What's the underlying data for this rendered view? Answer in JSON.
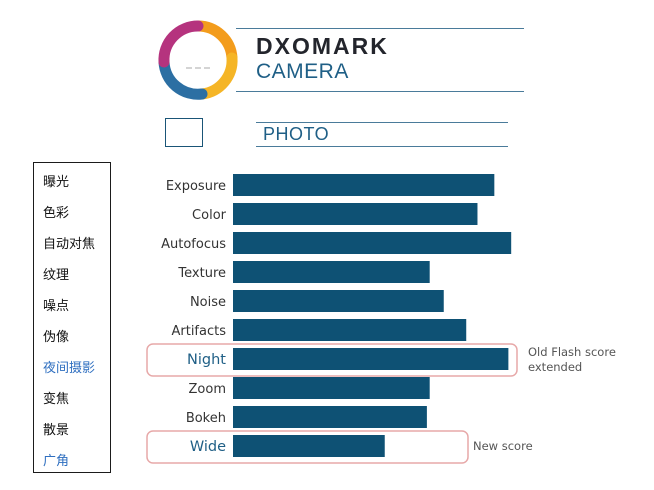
{
  "brand": {
    "name": "DXOMARK",
    "sub": "CAMERA"
  },
  "section": {
    "title": "PHOTO"
  },
  "legend": {
    "items": [
      "曝光",
      "色彩",
      "自动对焦",
      "纹理",
      "噪点",
      "伪像",
      "夜间摄影",
      "变焦",
      "散景",
      "广角"
    ],
    "highlighted": [
      6,
      9
    ]
  },
  "colors": {
    "bar": "#0e5174",
    "highlight_border": "#e7a9a9",
    "accent_blue": "#1f5f86"
  },
  "chart_data": {
    "type": "bar",
    "orientation": "horizontal",
    "title": "PHOTO",
    "categories": [
      "Exposure",
      "Color",
      "Autofocus",
      "Texture",
      "Noise",
      "Artifacts",
      "Night",
      "Zoom",
      "Bokeh",
      "Wide"
    ],
    "values": [
      93,
      87,
      99,
      70,
      75,
      83,
      98,
      70,
      69,
      54
    ],
    "xlim": [
      0,
      100
    ],
    "highlighted": [
      "Night",
      "Wide"
    ],
    "annotations": [
      {
        "category": "Night",
        "text_lines": [
          "Old Flash score",
          "extended"
        ]
      },
      {
        "category": "Wide",
        "text_lines": [
          "New score"
        ]
      }
    ]
  }
}
